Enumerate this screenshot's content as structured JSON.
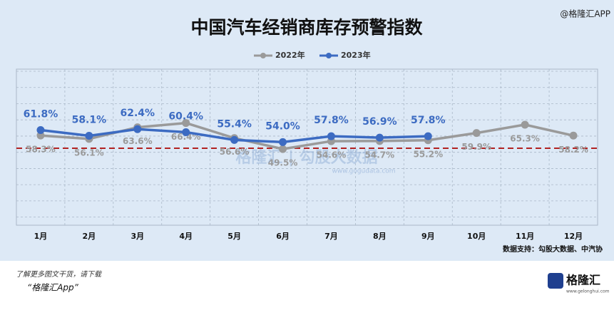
{
  "chart_data": {
    "type": "line",
    "title": "中国汽车经销商库存预警指数",
    "watermark": "@格隆汇APP",
    "categories": [
      "1月",
      "2月",
      "3月",
      "4月",
      "5月",
      "6月",
      "7月",
      "8月",
      "9月",
      "10月",
      "11月",
      "12月"
    ],
    "series": [
      {
        "name": "2022年",
        "color": "#9a9a9a",
        "values": [
          58.3,
          56.1,
          63.6,
          66.4,
          56.6,
          49.5,
          54.6,
          54.7,
          55.2,
          59.9,
          65.3,
          58.2
        ],
        "value_labels": [
          "58.3%",
          "56.1%",
          "63.6%",
          "66.4%",
          "56.6%",
          "49.5%",
          "54.6%",
          "54.7%",
          "55.2%",
          "59.9%",
          "65.3%",
          "58.2%"
        ]
      },
      {
        "name": "2023年",
        "color": "#3c6bc2",
        "values": [
          61.8,
          58.1,
          62.4,
          60.4,
          55.4,
          54.0,
          57.8,
          56.9,
          57.8,
          null,
          null,
          null
        ],
        "value_labels": [
          "61.8%",
          "58.1%",
          "62.4%",
          "60.4%",
          "55.4%",
          "54.0%",
          "57.8%",
          "56.9%",
          "57.8%",
          null,
          null,
          null
        ]
      }
    ],
    "ylim": [
      0,
      100
    ],
    "reference_line": {
      "value": 50,
      "color": "#b22222"
    },
    "source": "数据支持：勾股大数据、中汽协",
    "center_watermark": "格隆汇 | 勾股大数据",
    "center_watermark_url": "www.gogudata.com",
    "footer_text": "了解更多图文干货，请下载",
    "footer_app": "“格隆汇App”",
    "logo_text": "格隆汇",
    "logo_url": "www.gelonghui.com"
  }
}
